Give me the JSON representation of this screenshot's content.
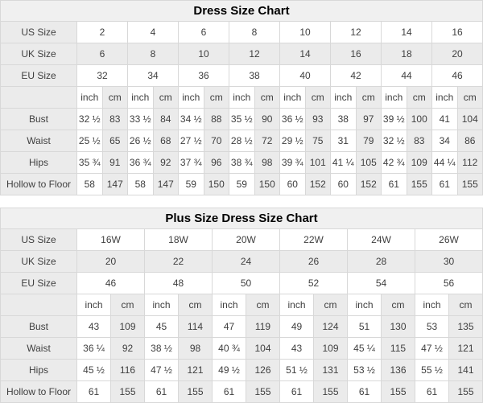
{
  "colors": {
    "page_bg": "#ffffff",
    "border": "#d8d8d8",
    "title_bg": "#f0f0f0",
    "label_bg": "#ebebeb",
    "alt_cell_bg": "#ebebeb",
    "cell_bg": "#ffffff",
    "text": "#3f3f3f",
    "title_text": "#000000"
  },
  "tables": [
    {
      "title": "Dress Size Chart",
      "size_rows": [
        {
          "label": "US Size",
          "values": [
            "2",
            "4",
            "6",
            "8",
            "10",
            "12",
            "14",
            "16"
          ]
        },
        {
          "label": "UK Size",
          "values": [
            "6",
            "8",
            "10",
            "12",
            "14",
            "16",
            "18",
            "20"
          ]
        },
        {
          "label": "EU Size",
          "values": [
            "32",
            "34",
            "36",
            "38",
            "40",
            "42",
            "44",
            "46"
          ]
        }
      ],
      "unit_row": {
        "label": "",
        "units": [
          "inch",
          "cm"
        ]
      },
      "measure_rows": [
        {
          "label": "Bust",
          "values": [
            [
              "32 ½",
              "83"
            ],
            [
              "33 ½",
              "84"
            ],
            [
              "34 ½",
              "88"
            ],
            [
              "35 ½",
              "90"
            ],
            [
              "36 ½",
              "93"
            ],
            [
              "38",
              "97"
            ],
            [
              "39 ½",
              "100"
            ],
            [
              "41",
              "104"
            ]
          ]
        },
        {
          "label": "Waist",
          "values": [
            [
              "25 ½",
              "65"
            ],
            [
              "26 ½",
              "68"
            ],
            [
              "27 ½",
              "70"
            ],
            [
              "28 ½",
              "72"
            ],
            [
              "29 ½",
              "75"
            ],
            [
              "31",
              "79"
            ],
            [
              "32 ½",
              "83"
            ],
            [
              "34",
              "86"
            ]
          ]
        },
        {
          "label": "Hips",
          "values": [
            [
              "35 ¾",
              "91"
            ],
            [
              "36 ¾",
              "92"
            ],
            [
              "37 ¾",
              "96"
            ],
            [
              "38 ¾",
              "98"
            ],
            [
              "39 ¾",
              "101"
            ],
            [
              "41 ¼",
              "105"
            ],
            [
              "42 ¾",
              "109"
            ],
            [
              "44 ¼",
              "112"
            ]
          ]
        },
        {
          "label": "Hollow to Floor",
          "values": [
            [
              "58",
              "147"
            ],
            [
              "58",
              "147"
            ],
            [
              "59",
              "150"
            ],
            [
              "59",
              "150"
            ],
            [
              "60",
              "152"
            ],
            [
              "60",
              "152"
            ],
            [
              "61",
              "155"
            ],
            [
              "61",
              "155"
            ]
          ]
        }
      ]
    },
    {
      "title": "Plus Size Dress Size Chart",
      "size_rows": [
        {
          "label": "US Size",
          "values": [
            "16W",
            "18W",
            "20W",
            "22W",
            "24W",
            "26W"
          ]
        },
        {
          "label": "UK Size",
          "values": [
            "20",
            "22",
            "24",
            "26",
            "28",
            "30"
          ]
        },
        {
          "label": "EU Size",
          "values": [
            "46",
            "48",
            "50",
            "52",
            "54",
            "56"
          ]
        }
      ],
      "unit_row": {
        "label": "",
        "units": [
          "inch",
          "cm"
        ]
      },
      "measure_rows": [
        {
          "label": "Bust",
          "values": [
            [
              "43",
              "109"
            ],
            [
              "45",
              "114"
            ],
            [
              "47",
              "119"
            ],
            [
              "49",
              "124"
            ],
            [
              "51",
              "130"
            ],
            [
              "53",
              "135"
            ]
          ]
        },
        {
          "label": "Waist",
          "values": [
            [
              "36 ¼",
              "92"
            ],
            [
              "38 ½",
              "98"
            ],
            [
              "40 ¾",
              "104"
            ],
            [
              "43",
              "109"
            ],
            [
              "45 ¼",
              "115"
            ],
            [
              "47 ½",
              "121"
            ]
          ]
        },
        {
          "label": "Hips",
          "values": [
            [
              "45 ½",
              "116"
            ],
            [
              "47 ½",
              "121"
            ],
            [
              "49 ½",
              "126"
            ],
            [
              "51 ½",
              "131"
            ],
            [
              "53 ½",
              "136"
            ],
            [
              "55 ½",
              "141"
            ]
          ]
        },
        {
          "label": "Hollow to Floor",
          "values": [
            [
              "61",
              "155"
            ],
            [
              "61",
              "155"
            ],
            [
              "61",
              "155"
            ],
            [
              "61",
              "155"
            ],
            [
              "61",
              "155"
            ],
            [
              "61",
              "155"
            ]
          ]
        }
      ]
    }
  ]
}
